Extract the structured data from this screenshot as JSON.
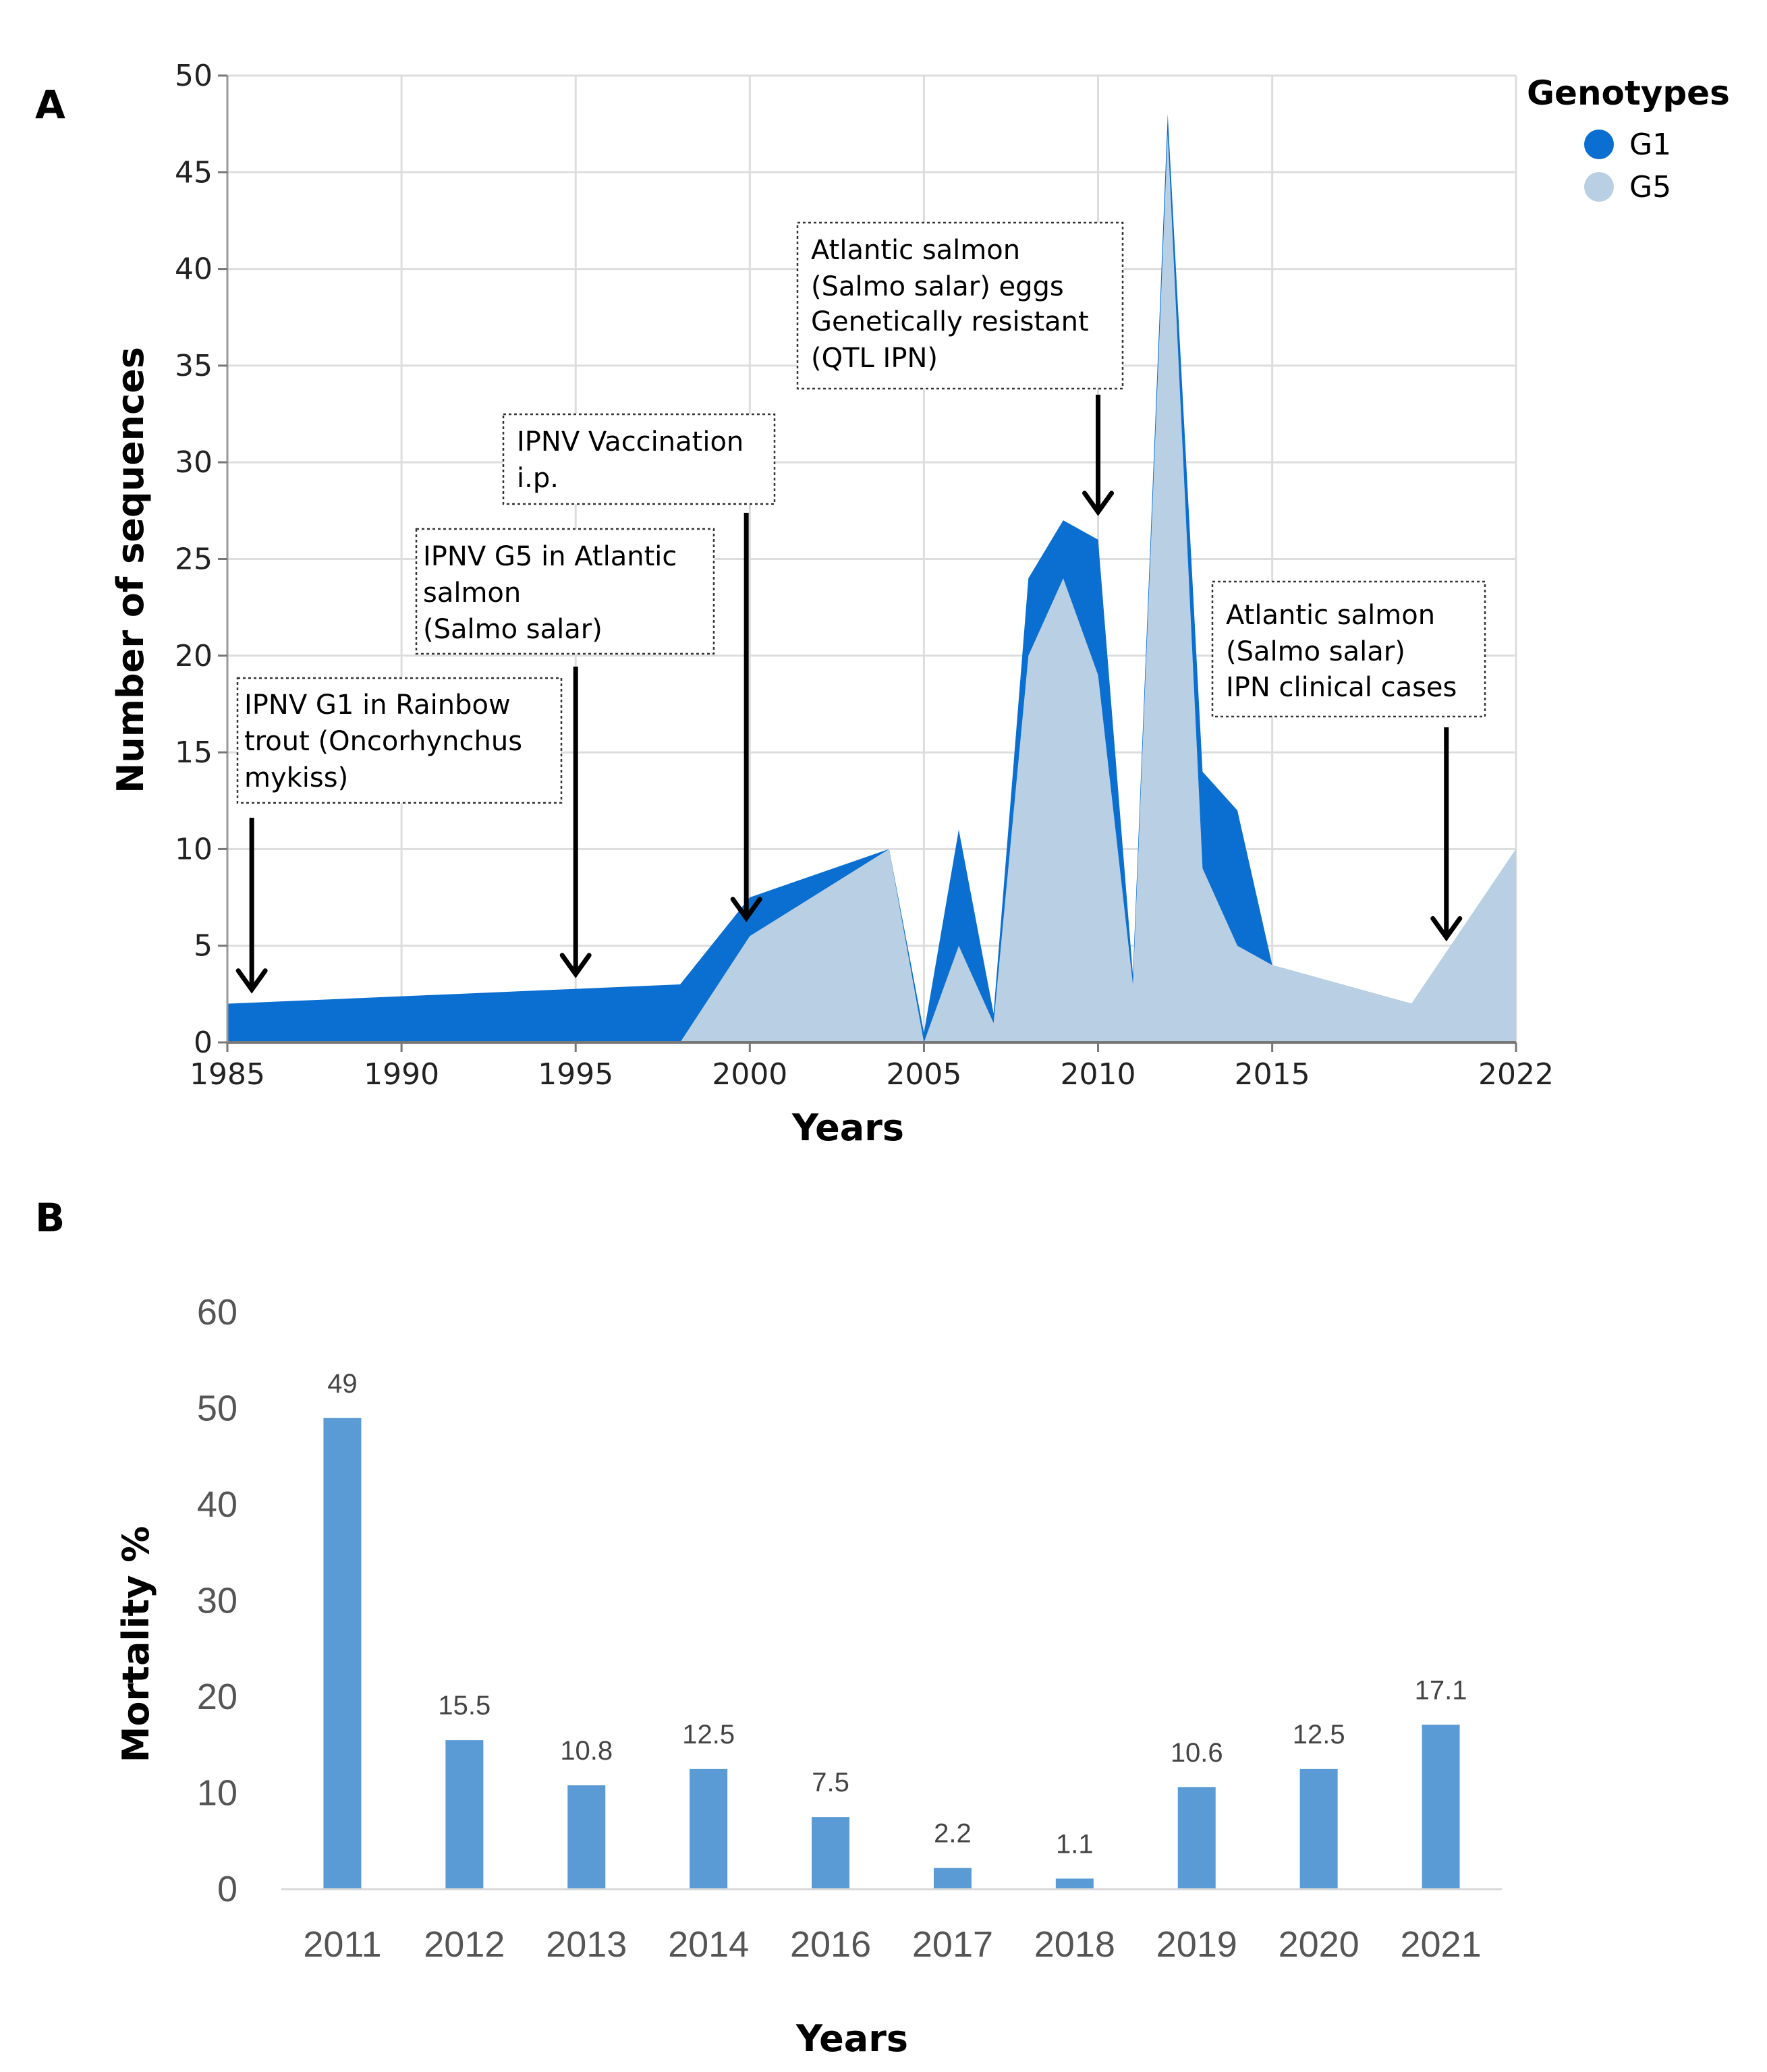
{
  "figure": {
    "panel_a_label": "A",
    "panel_b_label": "B"
  },
  "chart_data": [
    {
      "type": "area",
      "stacked": true,
      "xlabel": "Years",
      "ylabel": "Number of sequences",
      "xlim": [
        1985,
        2022
      ],
      "ylim": [
        0,
        50
      ],
      "x_ticks": [
        "1985",
        "1990",
        "1995",
        "2000",
        "2005",
        "2010",
        "2015",
        "2022"
      ],
      "y_ticks": [
        "0",
        "5",
        "10",
        "15",
        "20",
        "25",
        "30",
        "35",
        "40",
        "45",
        "50"
      ],
      "legend": {
        "title": "Genotypes",
        "position": "top-right",
        "items": [
          {
            "name": "G1",
            "color": "#0a6fd0"
          },
          {
            "name": "G5",
            "color": "#b9cfe4"
          }
        ]
      },
      "series": [
        {
          "name": "G5",
          "color": "#b9cfe4",
          "points": [
            [
              1998,
              0
            ],
            [
              2000,
              5.5
            ],
            [
              2004,
              10
            ],
            [
              2005,
              0
            ],
            [
              2006,
              5
            ],
            [
              2007,
              1
            ],
            [
              2008,
              20
            ],
            [
              2009,
              24
            ],
            [
              2010,
              19
            ],
            [
              2011,
              3
            ],
            [
              2012,
              47
            ],
            [
              2013,
              9
            ],
            [
              2014,
              5
            ],
            [
              2015,
              4
            ],
            [
              2019,
              2
            ],
            [
              2022,
              10
            ]
          ]
        },
        {
          "name": "G1",
          "color": "#0a6fd0",
          "points": [
            [
              1985,
              2
            ],
            [
              1998,
              3
            ],
            [
              2004,
              0
            ],
            [
              2005,
              0.5
            ],
            [
              2006,
              6
            ],
            [
              2007,
              0.5
            ],
            [
              2008,
              4
            ],
            [
              2009,
              3
            ],
            [
              2010,
              7
            ],
            [
              2011,
              0.5
            ],
            [
              2012,
              1
            ],
            [
              2013,
              5
            ],
            [
              2014,
              7
            ],
            [
              2015,
              0
            ],
            [
              2022,
              0
            ]
          ]
        }
      ],
      "annotations": [
        {
          "lines": [
            "IPNV G1 in Rainbow",
            "trout (Oncorhynchus",
            "mykiss)"
          ],
          "arrow_year": 1985.7,
          "arrow_to": 2.8
        },
        {
          "lines": [
            "IPNV G5 in Atlantic",
            "salmon",
            "(Salmo salar)"
          ],
          "arrow_year": 1995,
          "arrow_to": 3.6
        },
        {
          "lines": [
            "IPNV Vaccination",
            "i.p."
          ],
          "arrow_year": 1999.9,
          "arrow_to": 6.5
        },
        {
          "lines": [
            "Atlantic salmon",
            "(Salmo salar) eggs",
            "Genetically resistant",
            "(QTL IPN)"
          ],
          "arrow_year": 2010,
          "arrow_to": 27.5
        },
        {
          "lines": [
            "Atlantic salmon",
            "(Salmo salar)",
            "IPN clinical cases"
          ],
          "arrow_year": 2020,
          "arrow_to": 5.5
        }
      ]
    },
    {
      "type": "bar",
      "xlabel": "Years",
      "ylabel": "Mortality %",
      "ylim": [
        0,
        60
      ],
      "y_ticks": [
        "0",
        "10",
        "20",
        "30",
        "40",
        "50",
        "60"
      ],
      "color": "#5b9bd5",
      "categories": [
        "2011",
        "2012",
        "2013",
        "2014",
        "2016",
        "2017",
        "2018",
        "2019",
        "2020",
        "2021"
      ],
      "values": [
        49,
        15.5,
        10.8,
        12.5,
        7.5,
        2.2,
        1.1,
        10.6,
        12.5,
        17.1
      ],
      "value_labels": [
        "49",
        "15.5",
        "10.8",
        "12.5",
        "7.5",
        "2.2",
        "1.1",
        "10.6",
        "12.5",
        "17.1"
      ]
    }
  ]
}
